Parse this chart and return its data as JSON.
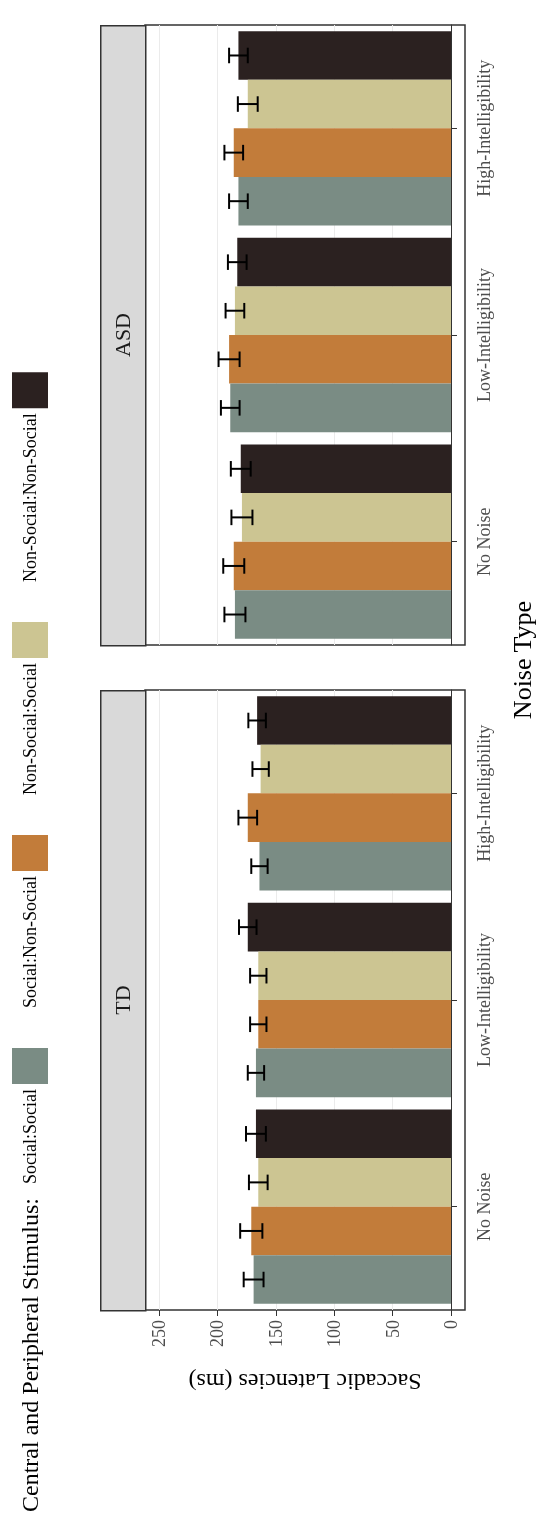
{
  "chart_data": [
    {
      "type": "bar",
      "orientation": "horizontal",
      "title": "ASD",
      "legend_title": "Central and Peripheral Stimulus:",
      "legend": "left",
      "ylabel": "Noise Type",
      "categories": [
        "High-Intelligibility",
        "Low-Intelligibility",
        "No Noise"
      ],
      "xlim": [
        262,
        -12
      ],
      "xticks": [
        250,
        200,
        150,
        100,
        50,
        0
      ],
      "grid": true,
      "tick_labels": "y",
      "series": [
        {
          "name": "Social:Social",
          "color": "#7a8c84",
          "values": [
            182,
            189,
            185
          ],
          "errors": [
            8,
            8,
            9
          ]
        },
        {
          "name": "Social:Non-Social",
          "color": "#c27c3a",
          "values": [
            186,
            190,
            186
          ],
          "errors": [
            8,
            9,
            9
          ]
        },
        {
          "name": "Non-Social:Social",
          "color": "#ccc592",
          "values": [
            174,
            185,
            179
          ],
          "errors": [
            8.5,
            8,
            9
          ]
        },
        {
          "name": "Non-Social:Non-Social",
          "color": "#2b2120",
          "values": [
            182,
            183,
            180
          ],
          "errors": [
            8,
            8,
            8.5
          ]
        }
      ]
    },
    {
      "type": "bar",
      "orientation": "horizontal",
      "title": "TD",
      "xlabel": "Saccadic Latencies (ms)",
      "categories": [
        "High-Intelligibility",
        "Low-Intelligibility",
        "No Noise"
      ],
      "xlim": [
        262,
        -12
      ],
      "xticks": [
        250,
        200,
        150,
        100,
        50,
        0
      ],
      "grid": true,
      "series": [
        {
          "color": "#7a8c84",
          "values": [
            164,
            167,
            169
          ],
          "errors": [
            7,
            7,
            8.5
          ]
        },
        {
          "color": "#c27c3a",
          "values": [
            174,
            165,
            171
          ],
          "errors": [
            8,
            7,
            9.5
          ]
        },
        {
          "color": "#ccc592",
          "values": [
            163,
            165,
            165
          ],
          "errors": [
            7,
            7,
            8
          ]
        },
        {
          "color": "#2b2120",
          "values": [
            166,
            174,
            167
          ],
          "errors": [
            7.5,
            7.5,
            8.5
          ]
        }
      ]
    }
  ]
}
